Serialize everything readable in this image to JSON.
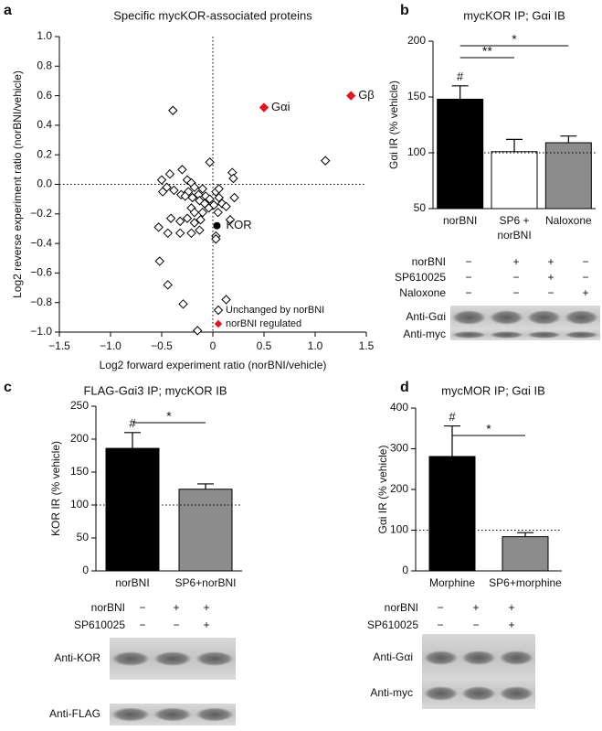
{
  "chart_data": [
    {
      "type": "scatter",
      "panel": "a",
      "title": "Specific mycKOR-associated proteins",
      "x_label": "Log2 forward experiment ratio (norBNI/vehicle)",
      "y_label": "Log2 reverse experiment ratio (norBNI/vehicle)",
      "xlim": [
        -1.5,
        1.5
      ],
      "ylim": [
        -1,
        1
      ],
      "xticks": [
        {
          "value": -1.5,
          "label": "−1.5"
        },
        {
          "value": -1,
          "label": "−1.0"
        },
        {
          "value": -0.5,
          "label": "−0.5"
        },
        0,
        0.5,
        {
          "value": 1,
          "label": "1.0"
        },
        1.5
      ],
      "yticks": [
        {
          "value": 1,
          "label": "1.0"
        },
        0.8,
        0.6,
        0.4,
        0.2,
        {
          "value": 0,
          "label": "0.0"
        },
        {
          "value": -0.2,
          "label": "−0.2"
        },
        {
          "value": -0.4,
          "label": "−0.4"
        },
        {
          "value": -0.6,
          "label": "−0.6"
        },
        {
          "value": -0.8,
          "label": "−0.8"
        },
        {
          "value": -1,
          "label": "−1.0"
        }
      ],
      "ref_lines": {
        "x": 0,
        "y": 0
      },
      "series": [
        {
          "name": "Unchanged by norBNI",
          "color": "#ffffff",
          "edgecolor": "#000000",
          "x": [
            -0.39,
            1.1,
            -0.03,
            0.19,
            0.2,
            -0.5,
            -0.42,
            -0.3,
            -0.45,
            -0.49,
            -0.38,
            -0.25,
            -0.21,
            -0.18,
            -0.24,
            -0.31,
            -0.27,
            -0.2,
            -0.14,
            -0.1,
            -0.07,
            -0.13,
            -0.08,
            -0.03,
            0.03,
            0.06,
            0.06,
            0.09,
            0.01,
            -0.04,
            -0.1,
            -0.21,
            -0.18,
            -0.12,
            -0.18,
            -0.25,
            -0.32,
            -0.41,
            -0.53,
            -0.44,
            -0.32,
            -0.21,
            -0.13,
            0.03,
            0.05,
            0.13,
            0.21,
            0.17,
            0.03,
            -0.52,
            -0.44,
            -0.29,
            0.13,
            -0.15
          ],
          "values": [
            0.5,
            0.16,
            0.15,
            0.08,
            0.04,
            0.03,
            0.07,
            0.1,
            -0.02,
            -0.05,
            -0.04,
            0.03,
            0.01,
            -0.02,
            -0.05,
            -0.07,
            -0.08,
            -0.09,
            -0.07,
            -0.03,
            -0.08,
            -0.11,
            -0.13,
            -0.1,
            -0.05,
            -0.03,
            -0.09,
            -0.13,
            -0.14,
            -0.16,
            -0.19,
            -0.16,
            -0.19,
            -0.24,
            -0.26,
            -0.23,
            -0.25,
            -0.23,
            -0.29,
            -0.33,
            -0.33,
            -0.33,
            -0.31,
            -0.35,
            -0.19,
            -0.15,
            -0.09,
            -0.24,
            -0.37,
            -0.52,
            -0.68,
            -0.81,
            -0.78,
            -0.99
          ]
        },
        {
          "name": "norBNI regulated",
          "color": "#e8141b",
          "edgecolor": "#e8141b",
          "x": [
            0.5,
            1.35
          ],
          "values": [
            0.52,
            0.6
          ],
          "labels": [
            "Gαi",
            "Gβ"
          ]
        }
      ],
      "annotations": [
        {
          "text": "KOR",
          "x": 0.04,
          "y": -0.28
        }
      ],
      "legend": "lower right"
    },
    {
      "type": "bar",
      "panel": "b",
      "title": "mycKOR IP; Gαi IB",
      "y_label": "Gαi IR (% vehicle)",
      "categories": [
        "norBNI",
        "SP6 +\nnorBNI",
        "Naloxone"
      ],
      "values": [
        148,
        101,
        109
      ],
      "errors": [
        12,
        11,
        6
      ],
      "colors": [
        "#000000",
        "#ffffff",
        "#8c8c8c"
      ],
      "ylim": [
        50,
        200
      ],
      "yticks": [
        50,
        100,
        150,
        200
      ],
      "ref_lines": {
        "y": 100
      },
      "annotations": [
        {
          "text": "#",
          "category": 0
        }
      ],
      "significance": [
        {
          "from": 0,
          "to": 1,
          "label": "**"
        },
        {
          "from": 0,
          "to": 2,
          "label": "*"
        }
      ],
      "blot": {
        "rows": [
          {
            "label": "norBNI",
            "signs": [
              "−",
              "+",
              "+",
              "−"
            ]
          },
          {
            "label": "SP610025",
            "signs": [
              "−",
              "−",
              "+",
              "−"
            ]
          },
          {
            "label": "Naloxone",
            "signs": [
              "−",
              "−",
              "−",
              "+"
            ]
          }
        ],
        "bands": [
          "Anti-Gαi",
          "Anti-myc"
        ]
      }
    },
    {
      "type": "bar",
      "panel": "c",
      "title": "FLAG-Gαi3 IP; mycKOR IB",
      "y_label": "KOR IR (% vehicle)",
      "categories": [
        "norBNI",
        "SP6+norBNI"
      ],
      "values": [
        186,
        124
      ],
      "errors": [
        24,
        8
      ],
      "colors": [
        "#000000",
        "#8c8c8c"
      ],
      "ylim": [
        0,
        250
      ],
      "yticks": [
        0,
        50,
        100,
        150,
        200,
        250
      ],
      "ref_lines": {
        "y": 100
      },
      "annotations": [
        {
          "text": "#",
          "category": 0
        }
      ],
      "significance": [
        {
          "from": 0,
          "to": 1,
          "label": "*"
        }
      ],
      "blot": {
        "rows": [
          {
            "label": "norBNI",
            "signs": [
              "−",
              "+",
              "+"
            ]
          },
          {
            "label": "SP610025",
            "signs": [
              "−",
              "−",
              "+"
            ]
          }
        ],
        "bands": [
          "Anti-KOR",
          "Anti-FLAG"
        ]
      }
    },
    {
      "type": "bar",
      "panel": "d",
      "title": "mycMOR IP; Gαi IB",
      "y_label": "Gαi IR (% vehicle)",
      "categories": [
        "Morphine",
        "SP6+morphine"
      ],
      "values": [
        281,
        84
      ],
      "errors": [
        75,
        10
      ],
      "colors": [
        "#000000",
        "#8c8c8c"
      ],
      "ylim": [
        0,
        400
      ],
      "yticks": [
        0,
        100,
        200,
        300,
        400
      ],
      "ref_lines": {
        "y": 100
      },
      "annotations": [
        {
          "text": "#",
          "category": 0
        }
      ],
      "significance": [
        {
          "from": 0,
          "to": 1,
          "label": "*"
        }
      ],
      "blot": {
        "rows": [
          {
            "label": "norBNI",
            "signs": [
              "−",
              "+",
              "+"
            ]
          },
          {
            "label": "SP610025",
            "signs": [
              "−",
              "−",
              "+"
            ]
          }
        ],
        "bands": [
          "Anti-Gαi",
          "Anti-myc"
        ]
      }
    }
  ]
}
